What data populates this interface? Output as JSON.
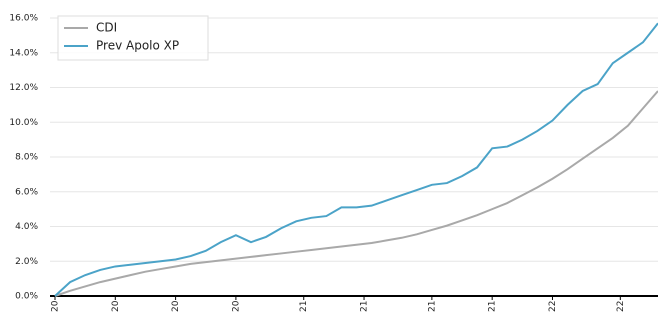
{
  "chart_data": {
    "type": "line",
    "x": [
      0,
      1,
      2,
      3,
      4,
      5,
      6,
      7,
      8,
      9,
      10,
      11,
      12,
      13,
      14,
      15,
      16,
      17,
      18,
      19,
      20,
      21,
      22,
      23,
      24,
      25,
      26,
      27,
      28,
      29,
      30,
      31,
      32,
      33,
      34,
      35,
      36,
      37,
      38,
      39,
      40
    ],
    "series": [
      {
        "name": "CDI",
        "color": "#a9a9a9",
        "values": [
          0,
          0.3,
          0.55,
          0.8,
          1.0,
          1.2,
          1.4,
          1.55,
          1.7,
          1.85,
          1.95,
          2.05,
          2.15,
          2.25,
          2.35,
          2.45,
          2.55,
          2.65,
          2.75,
          2.85,
          2.95,
          3.05,
          3.2,
          3.35,
          3.55,
          3.8,
          4.05,
          4.35,
          4.65,
          5.0,
          5.35,
          5.8,
          6.25,
          6.75,
          7.3,
          7.9,
          8.5,
          9.1,
          9.8,
          10.8,
          11.8
        ]
      },
      {
        "name": "Prev Apolo XP",
        "color": "#4ba3c8",
        "values": [
          0,
          0.8,
          1.2,
          1.5,
          1.7,
          1.8,
          1.9,
          2.0,
          2.1,
          2.3,
          2.6,
          3.1,
          3.5,
          3.1,
          3.4,
          3.9,
          4.3,
          4.5,
          4.6,
          5.1,
          5.1,
          5.2,
          5.5,
          5.8,
          6.1,
          6.4,
          6.5,
          6.9,
          7.4,
          8.5,
          8.6,
          9.0,
          9.5,
          10.1,
          11.0,
          11.8,
          12.2,
          13.4,
          14.0,
          14.6,
          15.7
        ]
      }
    ],
    "xlim": [
      0,
      40
    ],
    "xticks": [
      {
        "value": 0,
        "label": "20"
      },
      {
        "value": 4,
        "label": "20"
      },
      {
        "value": 8,
        "label": "20"
      },
      {
        "value": 12,
        "label": "20"
      },
      {
        "value": 16.5,
        "label": "21"
      },
      {
        "value": 20.5,
        "label": "21"
      },
      {
        "value": 25,
        "label": "21"
      },
      {
        "value": 29,
        "label": "21"
      },
      {
        "value": 33,
        "label": "22"
      },
      {
        "value": 37.5,
        "label": "22"
      }
    ],
    "ylim": [
      0,
      16
    ],
    "yticks": [
      {
        "value": 0,
        "label": "0.0%"
      },
      {
        "value": 2,
        "label": "2.0%"
      },
      {
        "value": 4,
        "label": "4.0%"
      },
      {
        "value": 6,
        "label": "6.0%"
      },
      {
        "value": 8,
        "label": "8.0%"
      },
      {
        "value": 10,
        "label": "10.0%"
      },
      {
        "value": 12,
        "label": "12.0%"
      },
      {
        "value": 14,
        "label": "14.0%"
      },
      {
        "value": 16,
        "label": "16.0%"
      }
    ],
    "grid": true,
    "legend": "upper left"
  }
}
